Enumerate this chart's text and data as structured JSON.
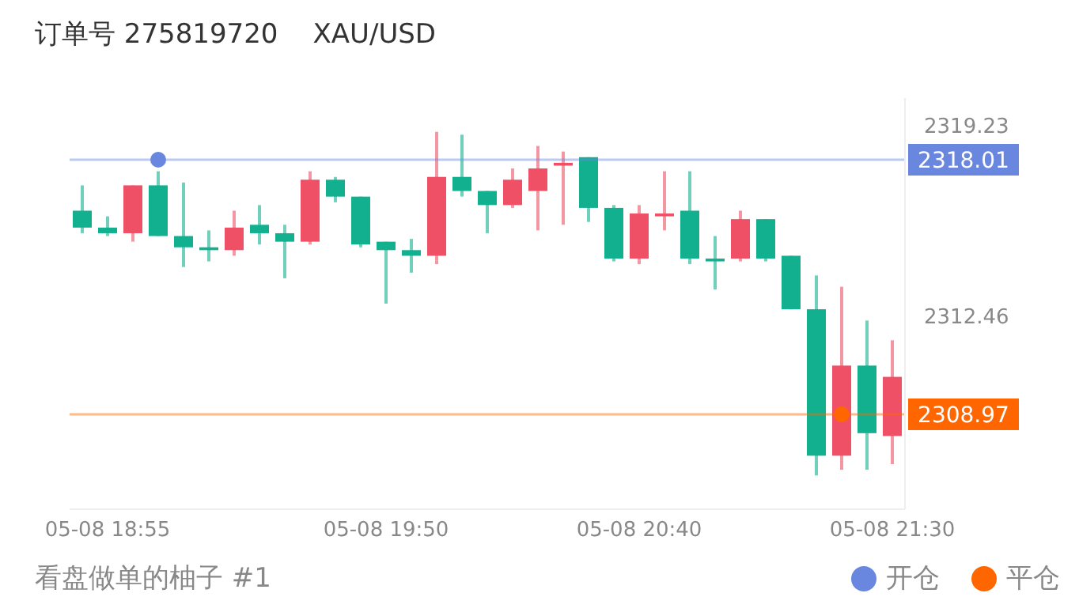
{
  "chart_data": {
    "type": "candlestick",
    "title": "订单号 275819720",
    "subtitle": "XAU/USD",
    "categories": [
      null,
      "05-08 18:55",
      null,
      null,
      null,
      null,
      null,
      null,
      null,
      null,
      null,
      null,
      "05-08 19:50",
      null,
      null,
      null,
      null,
      null,
      null,
      null,
      null,
      null,
      "05-08 20:40",
      null,
      null,
      null,
      null,
      null,
      null,
      null,
      null,
      null,
      "05-08 21:30"
    ],
    "ohlc": [
      [
        2316.2,
        2317.1,
        2315.4,
        2315.6
      ],
      [
        2315.6,
        2316.0,
        2315.3,
        2315.4
      ],
      [
        2315.4,
        2317.1,
        2315.1,
        2317.1
      ],
      [
        2317.1,
        2317.6,
        2315.3,
        2315.3
      ],
      [
        2315.3,
        2317.2,
        2314.2,
        2314.9
      ],
      [
        2314.9,
        2315.5,
        2314.4,
        2314.8
      ],
      [
        2314.8,
        2316.2,
        2314.6,
        2315.6
      ],
      [
        2315.7,
        2316.4,
        2315.0,
        2315.4
      ],
      [
        2315.4,
        2315.7,
        2313.8,
        2315.1
      ],
      [
        2315.1,
        2317.6,
        2315.0,
        2317.3
      ],
      [
        2317.3,
        2317.4,
        2316.5,
        2316.7
      ],
      [
        2316.7,
        2316.7,
        2314.9,
        2315.0
      ],
      [
        2315.1,
        2315.1,
        2312.9,
        2314.8
      ],
      [
        2314.8,
        2315.2,
        2314.0,
        2314.6
      ],
      [
        2314.6,
        2319.0,
        2314.3,
        2317.4
      ],
      [
        2317.4,
        2318.9,
        2316.7,
        2316.9
      ],
      [
        2316.9,
        2316.9,
        2315.4,
        2316.4
      ],
      [
        2316.4,
        2317.7,
        2316.3,
        2317.3
      ],
      [
        2316.9,
        2318.5,
        2315.5,
        2317.7
      ],
      [
        2317.8,
        2318.3,
        2315.7,
        2317.9
      ],
      [
        2318.1,
        2318.1,
        2315.8,
        2316.3
      ],
      [
        2316.3,
        2316.4,
        2314.4,
        2314.5
      ],
      [
        2314.5,
        2316.4,
        2314.3,
        2316.1
      ],
      [
        2316.0,
        2317.6,
        2315.5,
        2316.1
      ],
      [
        2316.2,
        2317.6,
        2314.3,
        2314.5
      ],
      [
        2314.5,
        2315.3,
        2313.4,
        2314.4
      ],
      [
        2314.5,
        2316.2,
        2314.4,
        2315.9
      ],
      [
        2315.9,
        2315.9,
        2314.4,
        2314.5
      ],
      [
        2314.6,
        2314.6,
        2312.7,
        2312.7
      ],
      [
        2312.7,
        2313.9,
        2306.8,
        2307.5
      ],
      [
        2307.5,
        2313.5,
        2307.0,
        2310.7
      ],
      [
        2310.7,
        2312.3,
        2307.0,
        2308.3
      ],
      [
        2308.2,
        2311.6,
        2307.2,
        2310.3
      ]
    ],
    "colors": [
      "#12b08f",
      "#12b08f",
      "#ef5066",
      "#12b08f",
      "#12b08f",
      "#12b08f",
      "#ef5066",
      "#12b08f",
      "#12b08f",
      "#ef5066",
      "#12b08f",
      "#12b08f",
      "#12b08f",
      "#12b08f",
      "#ef5066",
      "#12b08f",
      "#12b08f",
      "#ef5066",
      "#ef5066",
      "#ef5066",
      "#12b08f",
      "#12b08f",
      "#ef5066",
      "#ef5066",
      "#12b08f",
      "#12b08f",
      "#ef5066",
      "#12b08f",
      "#12b08f",
      "#12b08f",
      "#ef5066",
      "#12b08f",
      "#ef5066"
    ],
    "series": [
      {
        "name": "开仓",
        "type": "scatter",
        "color": "#6a87e0",
        "values": [
          null,
          null,
          null,
          2318.01,
          null,
          null,
          null,
          null,
          null,
          null,
          null,
          null,
          null,
          null,
          null,
          null,
          null,
          null,
          null,
          null,
          null,
          null,
          null,
          null,
          null,
          null,
          null,
          null,
          null,
          null,
          null,
          null,
          null
        ]
      },
      {
        "name": "平仓",
        "type": "scatter",
        "color": "#ff6600",
        "values": [
          null,
          null,
          null,
          null,
          null,
          null,
          null,
          null,
          null,
          null,
          null,
          null,
          null,
          null,
          null,
          null,
          null,
          null,
          null,
          null,
          null,
          null,
          null,
          null,
          null,
          null,
          null,
          null,
          null,
          null,
          2308.97,
          null,
          null
        ]
      }
    ],
    "ylim": [
      2305.6,
      2320.2
    ],
    "yticks": [
      2319.23,
      2312.46
    ],
    "ref_lines": [
      {
        "axis": "y",
        "value": 2318.01,
        "label": "2318.01",
        "color": "#6a87e0"
      },
      {
        "axis": "y",
        "value": 2308.97,
        "label": "2308.97",
        "color": "#ff6600"
      }
    ],
    "legend": "bottom right",
    "annotations": [
      "看盘做单的柚子 #1"
    ]
  }
}
